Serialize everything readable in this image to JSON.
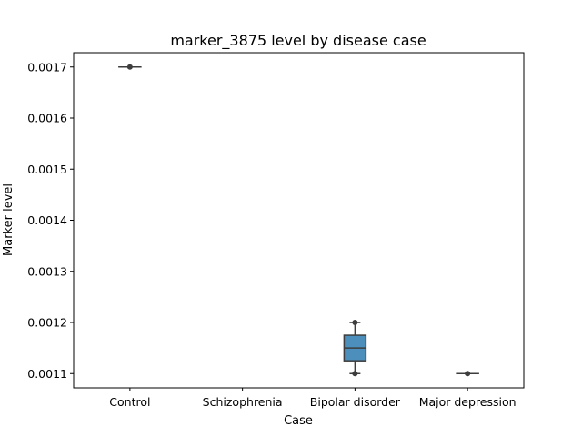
{
  "chart_data": {
    "type": "box",
    "title": "marker_3875 level by disease case",
    "xlabel": "Case",
    "ylabel": "Marker level",
    "categories": [
      "Control",
      "Schizophrenia",
      "Bipolar disorder",
      "Major depression"
    ],
    "boxes": [
      {
        "category": "Control",
        "min": 0.0017,
        "q1": 0.0017,
        "median": 0.0017,
        "q3": 0.0017,
        "max": 0.0017,
        "points": [
          0.0017
        ]
      },
      {
        "category": "Schizophrenia",
        "min": null,
        "q1": null,
        "median": null,
        "q3": null,
        "max": null,
        "points": []
      },
      {
        "category": "Bipolar disorder",
        "min": 0.0011,
        "q1": 0.001125,
        "median": 0.00115,
        "q3": 0.001175,
        "max": 0.0012,
        "points": [
          0.0011,
          0.0012
        ]
      },
      {
        "category": "Major depression",
        "min": 0.0011,
        "q1": 0.0011,
        "median": 0.0011,
        "q3": 0.0011,
        "max": 0.0011,
        "points": [
          0.0011
        ]
      }
    ],
    "yticks": [
      0.0011,
      0.0012,
      0.0013,
      0.0014,
      0.0015,
      0.0016,
      0.0017
    ],
    "ytick_labels": [
      "0.0011",
      "0.0012",
      "0.0013",
      "0.0014",
      "0.0015",
      "0.0016",
      "0.0017"
    ],
    "ylim": [
      0.001072,
      0.001728
    ],
    "grid": false,
    "colors": {
      "box_fill": "#4c8fbd",
      "line": "#3d3d3d",
      "axis": "#000000"
    }
  }
}
